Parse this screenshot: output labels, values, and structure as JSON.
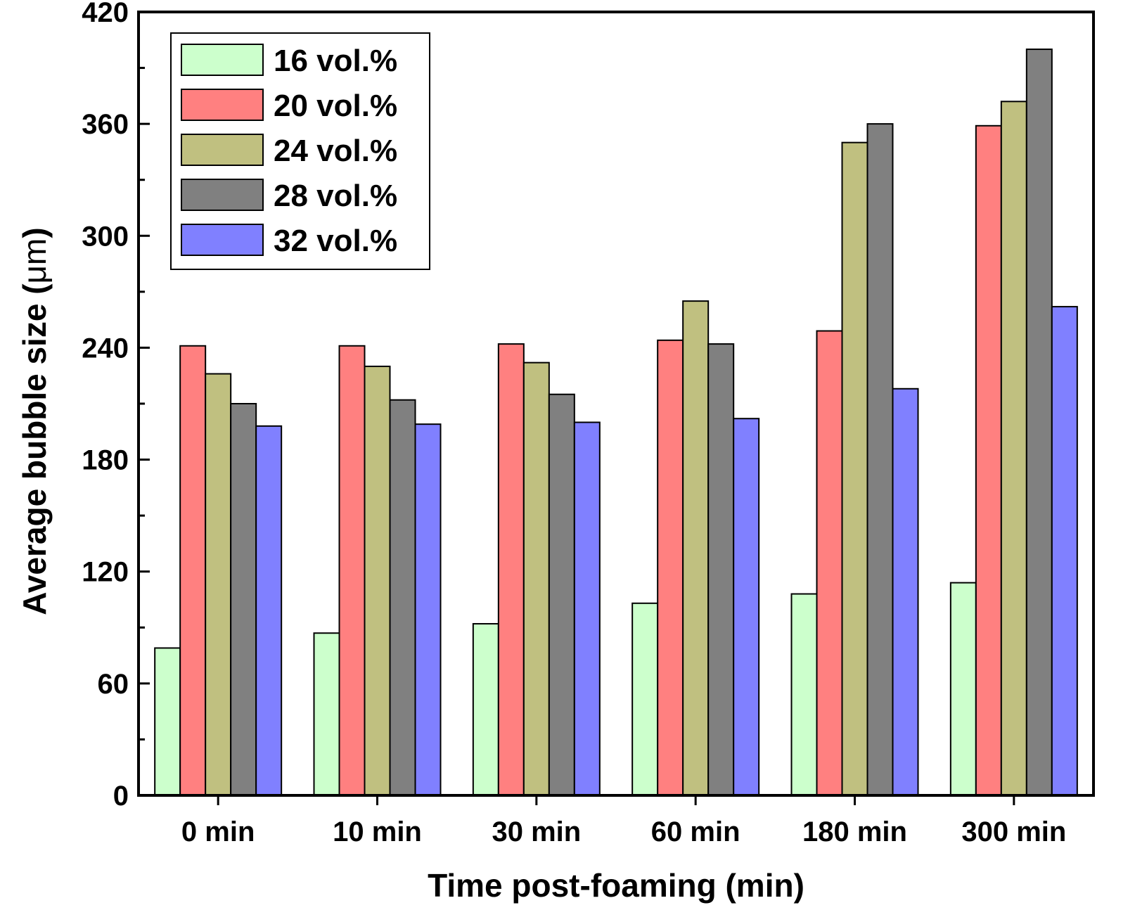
{
  "chart_data": {
    "type": "bar",
    "xlabel": "Time post-foaming (min)",
    "ylabel_prefix": "Average bubble size (",
    "ylabel_unit": "μm",
    "ylabel_suffix": ")",
    "ylim": [
      0,
      420
    ],
    "yticks": [
      0,
      60,
      120,
      180,
      240,
      300,
      360,
      420
    ],
    "yminor_step": 30,
    "grid": false,
    "legend_position": "top-left",
    "categories": [
      "0 min",
      "10 min",
      "30 min",
      "60 min",
      "180 min",
      "300 min"
    ],
    "series": [
      {
        "name": "16 vol.%",
        "color": "#ccffcc",
        "values": [
          79,
          87,
          92,
          103,
          108,
          114
        ]
      },
      {
        "name": "20 vol.%",
        "color": "#ff8080",
        "values": [
          241,
          241,
          242,
          244,
          249,
          359
        ]
      },
      {
        "name": "24 vol.%",
        "color": "#c0c080",
        "values": [
          226,
          230,
          232,
          265,
          350,
          372
        ]
      },
      {
        "name": "28 vol.%",
        "color": "#808080",
        "values": [
          210,
          212,
          215,
          242,
          360,
          400
        ]
      },
      {
        "name": "32 vol.%",
        "color": "#8080ff",
        "values": [
          198,
          199,
          200,
          202,
          218,
          262
        ]
      }
    ]
  }
}
